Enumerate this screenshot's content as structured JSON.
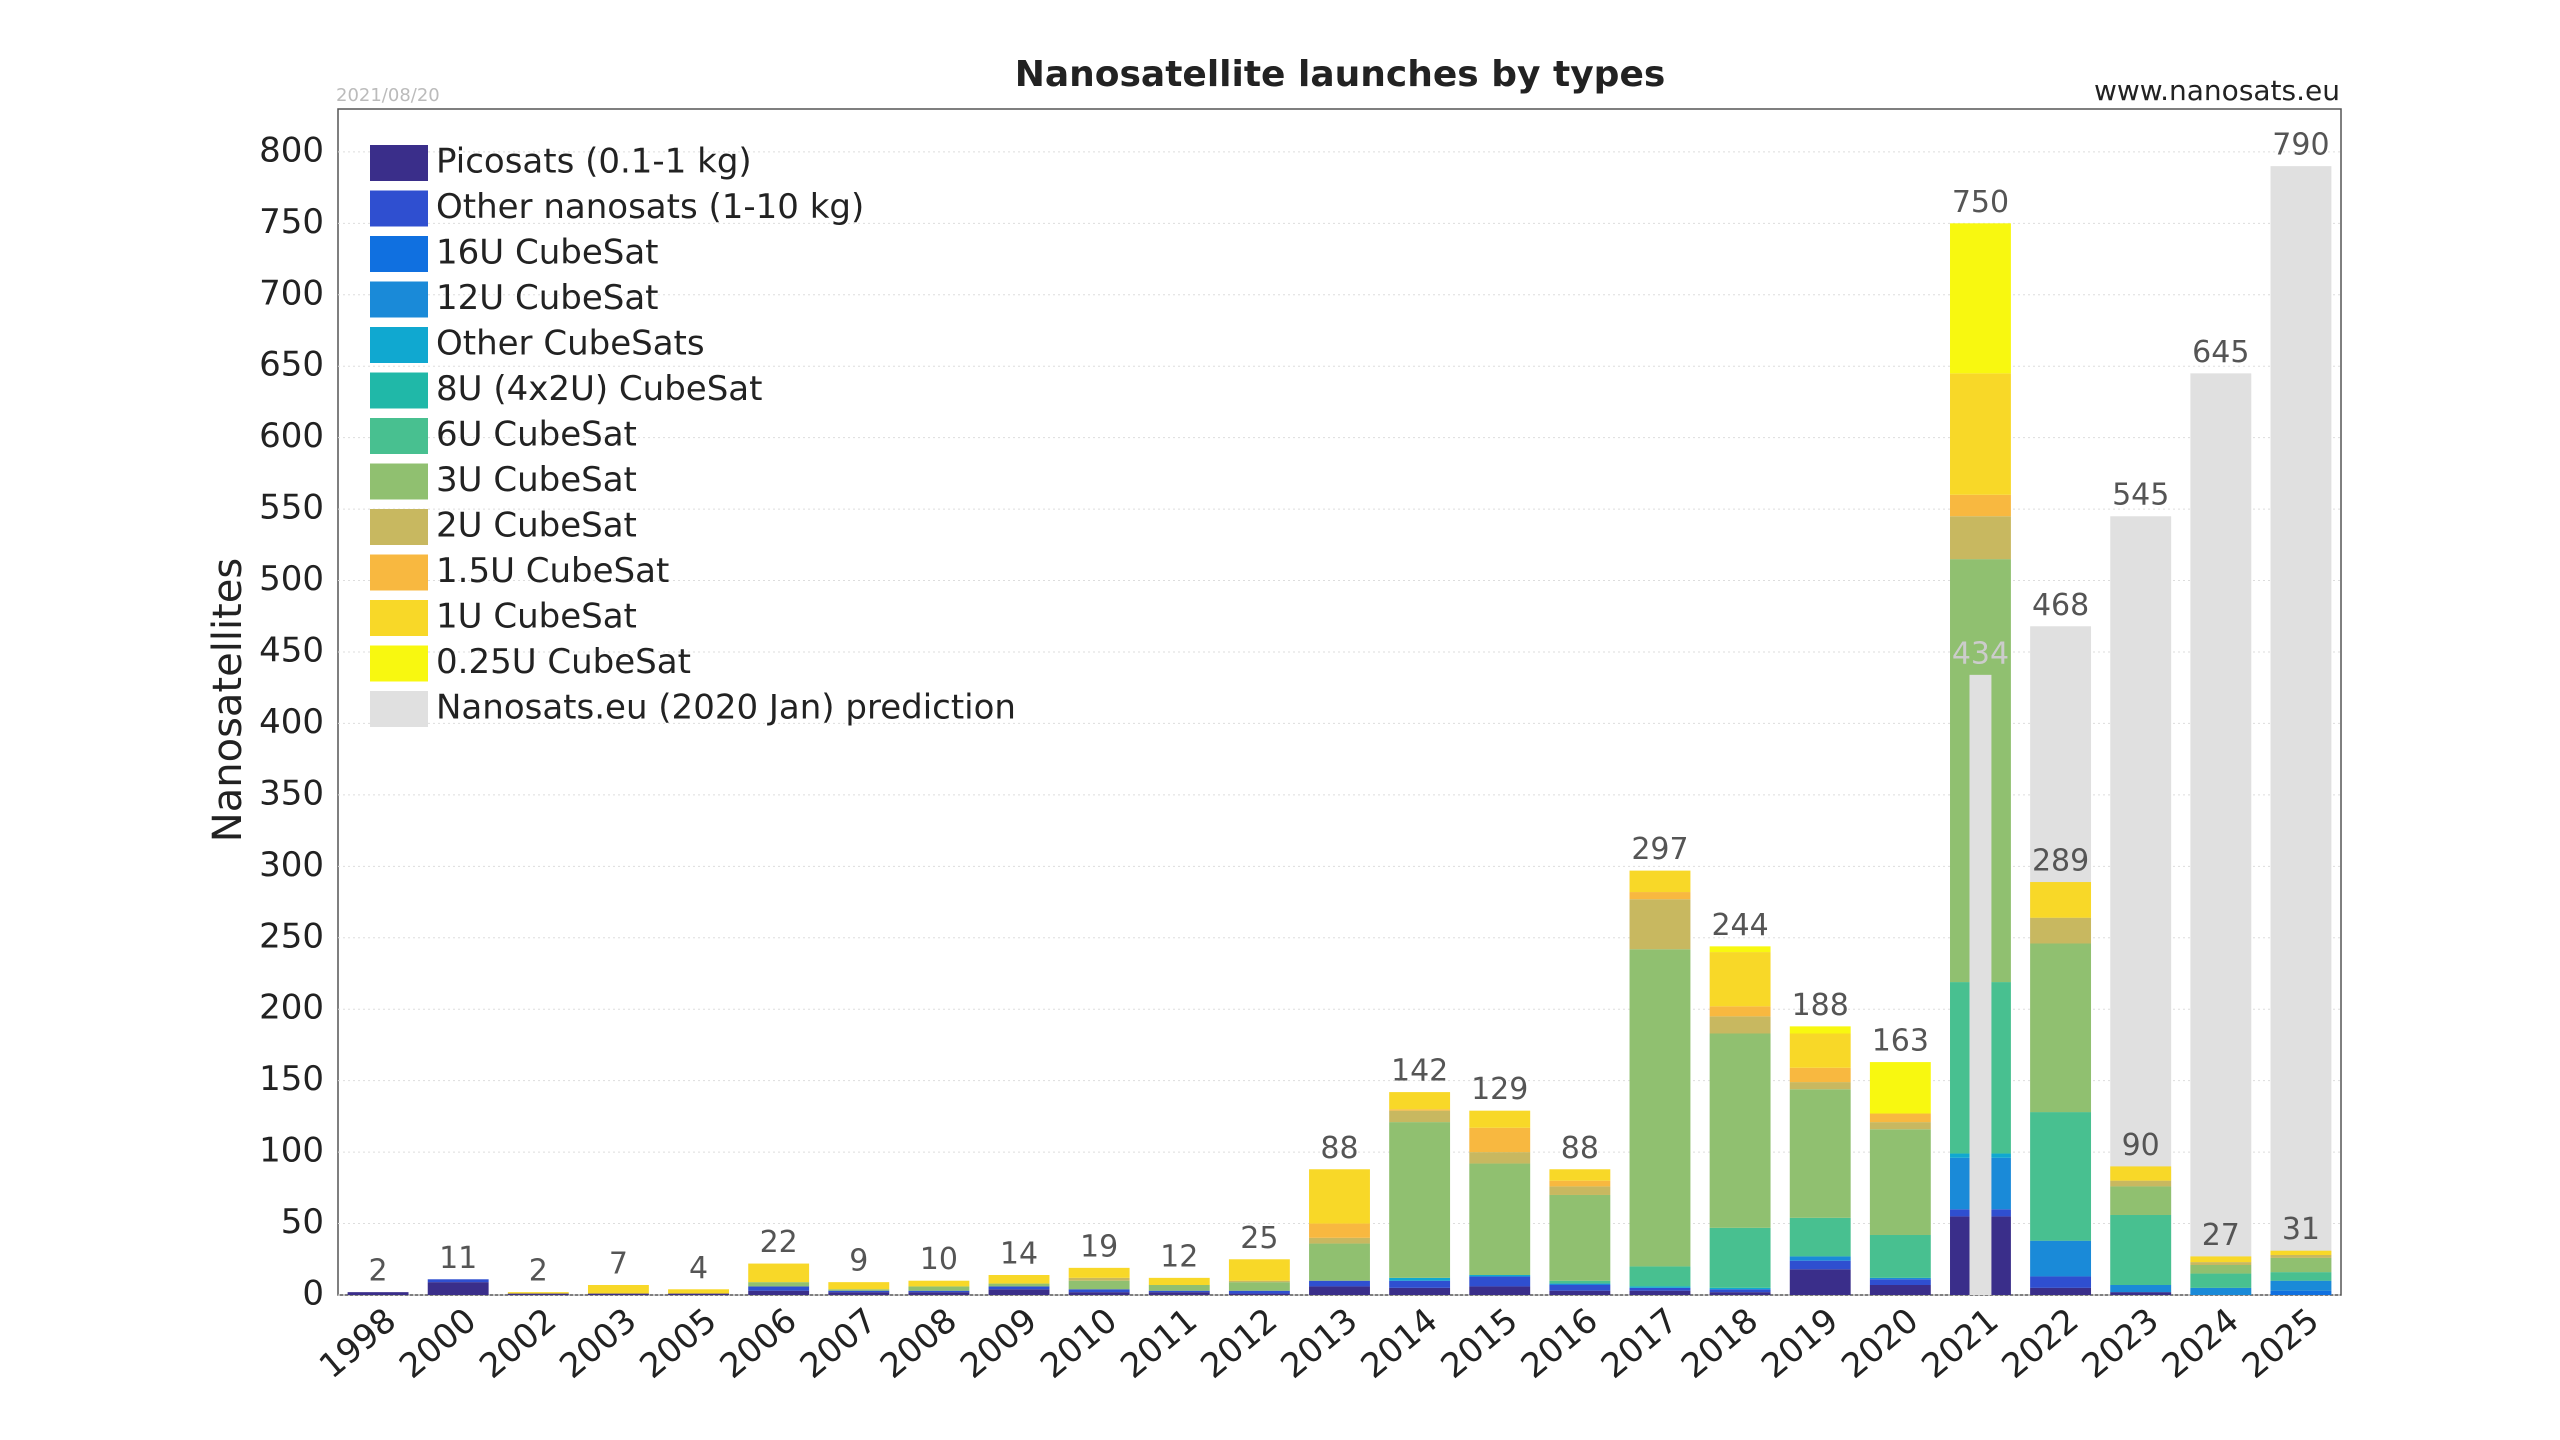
{
  "chart_data": {
    "type": "stacked_bar",
    "title": "Nanosatellite launches by types",
    "date": "2021/08/20",
    "source": "www.nanosats.eu",
    "y_label": "Nanosatellites",
    "categories": [
      "1998",
      "2000",
      "2002",
      "2003",
      "2005",
      "2006",
      "2007",
      "2008",
      "2009",
      "2010",
      "2011",
      "2012",
      "2013",
      "2014",
      "2015",
      "2016",
      "2017",
      "2018",
      "2019",
      "2020",
      "2021",
      "2022",
      "2023",
      "2024",
      "2025"
    ],
    "series": [
      {
        "name": "Picosats (0.1-1 kg)",
        "color": "#3a2e8a",
        "values": [
          2,
          9,
          1,
          1,
          1,
          3,
          2,
          2,
          4,
          2,
          2,
          1,
          6,
          5,
          6,
          3,
          3,
          2,
          18,
          7,
          55,
          5,
          2,
          0,
          0
        ]
      },
      {
        "name": "Other nanosats (1-10 kg)",
        "color": "#2f4fd0",
        "values": [
          0,
          2,
          0,
          0,
          0,
          3,
          1,
          1,
          2,
          2,
          1,
          2,
          4,
          5,
          7,
          4,
          2,
          2,
          6,
          4,
          5,
          8,
          0,
          0,
          0
        ]
      },
      {
        "name": "16U CubeSat",
        "color": "#1070e0",
        "values": [
          0,
          0,
          0,
          0,
          0,
          0,
          0,
          0,
          0,
          0,
          0,
          0,
          0,
          0,
          0,
          0,
          0,
          0,
          0,
          0,
          0,
          0,
          0,
          0,
          3
        ]
      },
      {
        "name": "12U CubeSat",
        "color": "#1a8ad8",
        "values": [
          0,
          0,
          0,
          0,
          0,
          0,
          0,
          0,
          0,
          0,
          0,
          0,
          0,
          0,
          0,
          1,
          0,
          0,
          3,
          1,
          36,
          25,
          5,
          5,
          7
        ]
      },
      {
        "name": "Other CubeSats",
        "color": "#10a8d0",
        "values": [
          0,
          0,
          0,
          0,
          0,
          0,
          0,
          0,
          0,
          0,
          0,
          0,
          0,
          2,
          1,
          0,
          1,
          1,
          0,
          0,
          3,
          0,
          0,
          0,
          0
        ]
      },
      {
        "name": "8U (4x2U) CubeSat",
        "color": "#20b8a8",
        "values": [
          0,
          0,
          0,
          0,
          0,
          0,
          0,
          0,
          0,
          0,
          0,
          0,
          0,
          0,
          0,
          0,
          0,
          0,
          0,
          0,
          0,
          0,
          0,
          0,
          0
        ]
      },
      {
        "name": "6U CubeSat",
        "color": "#48c090",
        "values": [
          0,
          0,
          0,
          0,
          0,
          0,
          0,
          0,
          0,
          0,
          0,
          0,
          0,
          0,
          0,
          2,
          14,
          42,
          27,
          30,
          120,
          90,
          49,
          10,
          6
        ]
      },
      {
        "name": "3U CubeSat",
        "color": "#90c070",
        "values": [
          0,
          0,
          0,
          0,
          0,
          3,
          1,
          3,
          2,
          6,
          4,
          6,
          26,
          109,
          78,
          60,
          222,
          136,
          90,
          74,
          296,
          118,
          20,
          6,
          10
        ]
      },
      {
        "name": "2U CubeSat",
        "color": "#c8b860",
        "values": [
          0,
          0,
          0,
          0,
          0,
          0,
          0,
          0,
          0,
          2,
          0,
          1,
          4,
          8,
          8,
          6,
          35,
          12,
          5,
          5,
          30,
          18,
          4,
          2,
          2
        ]
      },
      {
        "name": "1.5U CubeSat",
        "color": "#f8b840",
        "values": [
          0,
          0,
          0,
          0,
          0,
          0,
          0,
          0,
          0,
          0,
          0,
          0,
          10,
          1,
          17,
          4,
          5,
          7,
          10,
          6,
          15,
          0,
          0,
          0,
          0
        ]
      },
      {
        "name": "1U CubeSat",
        "color": "#f8d828",
        "values": [
          0,
          0,
          1,
          6,
          3,
          13,
          5,
          4,
          6,
          7,
          5,
          15,
          38,
          12,
          12,
          8,
          15,
          38,
          24,
          0,
          85,
          25,
          10,
          4,
          3
        ]
      },
      {
        "name": "0.25U CubeSat",
        "color": "#f8f810",
        "values": [
          0,
          0,
          0,
          0,
          0,
          0,
          0,
          0,
          0,
          0,
          0,
          0,
          0,
          0,
          0,
          0,
          0,
          4,
          5,
          36,
          105,
          0,
          0,
          0,
          0
        ]
      }
    ],
    "totals": [
      2,
      11,
      2,
      7,
      4,
      22,
      9,
      10,
      14,
      19,
      12,
      25,
      88,
      142,
      129,
      88,
      297,
      244,
      188,
      163,
      750,
      289,
      90,
      27,
      31
    ],
    "prediction": {
      "name": "Nanosats.eu (2020 Jan) prediction",
      "color": "#e0e0e0",
      "values": [
        null,
        null,
        null,
        null,
        null,
        null,
        null,
        null,
        null,
        null,
        null,
        null,
        null,
        null,
        null,
        null,
        null,
        null,
        null,
        null,
        434,
        468,
        545,
        645,
        790
      ]
    },
    "ylim": [
      0,
      830
    ],
    "yticks": [
      0,
      50,
      100,
      150,
      200,
      250,
      300,
      350,
      400,
      450,
      500,
      550,
      600,
      650,
      700,
      750,
      800
    ],
    "grid": true
  }
}
